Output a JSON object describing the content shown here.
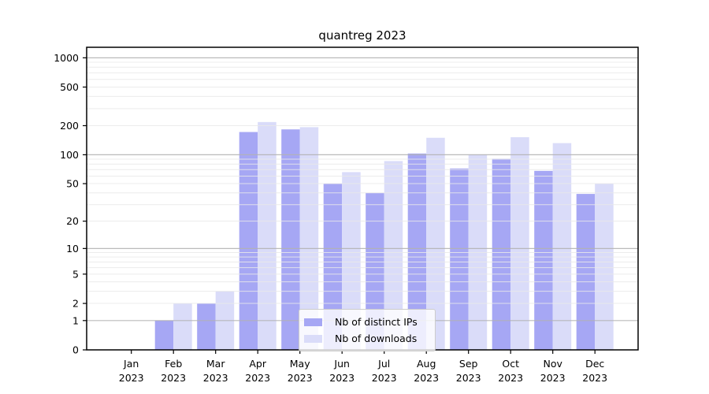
{
  "chart_data": {
    "type": "bar",
    "title": "quantreg 2023",
    "categories": [
      "Jan",
      "Feb",
      "Mar",
      "Apr",
      "May",
      "Jun",
      "Jul",
      "Aug",
      "Sep",
      "Oct",
      "Nov",
      "Dec"
    ],
    "year_label": "2023",
    "series": [
      {
        "name": "Nb of distinct IPs",
        "color": "#a6a7f4",
        "values": [
          0,
          1,
          2,
          172,
          183,
          50,
          40,
          103,
          72,
          91,
          68,
          39
        ]
      },
      {
        "name": "Nb of downloads",
        "color": "#dadcf9",
        "values": [
          0,
          2,
          3,
          218,
          193,
          66,
          86,
          150,
          101,
          152,
          132,
          50
        ]
      }
    ],
    "xlabel": "",
    "ylabel": "",
    "y_scale": "log1p",
    "ylim": [
      0,
      1280
    ],
    "y_ticks": [
      0,
      1,
      2,
      5,
      10,
      20,
      50,
      100,
      200,
      500,
      1000
    ],
    "y_major_gridlines": [
      1,
      10,
      100,
      1000
    ],
    "y_minor_gridlines": [
      2,
      3,
      4,
      5,
      6,
      7,
      8,
      9,
      20,
      30,
      40,
      50,
      60,
      70,
      80,
      90,
      200,
      300,
      400,
      500,
      600,
      700,
      800,
      900
    ],
    "grid": true,
    "legend_position": "lower-center"
  },
  "colors": {
    "major_grid": "#b3b3b3",
    "minor_grid": "#e9e9e9",
    "axis": "#000000",
    "tick_text": "#000000",
    "background": "#ffffff"
  }
}
